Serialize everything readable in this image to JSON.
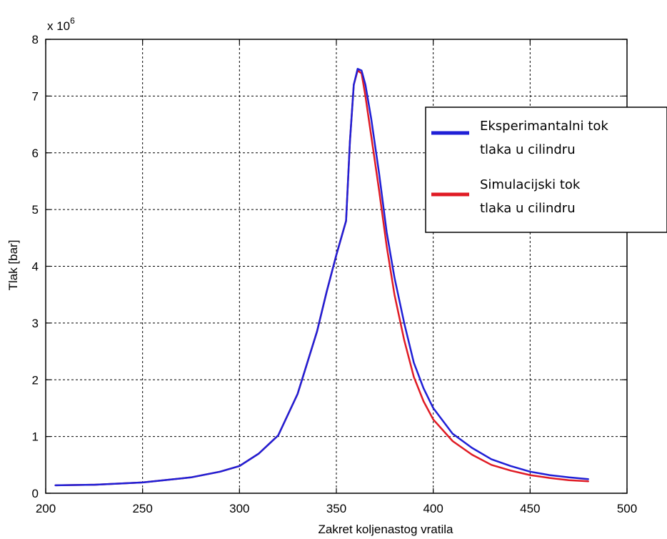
{
  "chart_data": {
    "type": "line",
    "title": "",
    "xlabel": "Zakret koljenastog vratila",
    "ylabel": "Tlak [bar]",
    "y_multiplier": "x 10",
    "y_multiplier_exponent": "6",
    "xlim": [
      200,
      500
    ],
    "ylim": [
      0,
      8
    ],
    "x_ticks": [
      200,
      250,
      300,
      350,
      400,
      450,
      500
    ],
    "y_ticks": [
      0,
      1,
      2,
      3,
      4,
      5,
      6,
      7,
      8
    ],
    "grid": true,
    "legend_position": "top-right",
    "series": [
      {
        "name": "Eksperimantalni tok tlaka u cilindru",
        "color": "#1f1fd6",
        "x": [
          205,
          225,
          250,
          275,
          290,
          300,
          310,
          320,
          330,
          340,
          345,
          350,
          355,
          357,
          359,
          361,
          363,
          365,
          368,
          372,
          376,
          380,
          385,
          390,
          395,
          400,
          410,
          420,
          430,
          440,
          450,
          460,
          470,
          480
        ],
        "y": [
          0.14,
          0.15,
          0.19,
          0.28,
          0.38,
          0.48,
          0.7,
          1.02,
          1.75,
          2.85,
          3.55,
          4.2,
          4.8,
          6.2,
          7.2,
          7.48,
          7.45,
          7.2,
          6.6,
          5.65,
          4.6,
          3.8,
          3.0,
          2.3,
          1.85,
          1.5,
          1.05,
          0.8,
          0.6,
          0.48,
          0.38,
          0.32,
          0.28,
          0.25
        ]
      },
      {
        "name": "Simulacijski tok tlaka u cilindru",
        "color": "#e01b24",
        "x": [
          205,
          225,
          250,
          275,
          290,
          300,
          310,
          320,
          330,
          340,
          345,
          350,
          355,
          357,
          359,
          361,
          363,
          365,
          368,
          372,
          376,
          380,
          385,
          390,
          395,
          400,
          410,
          420,
          430,
          440,
          450,
          460,
          470,
          480
        ],
        "y": [
          0.14,
          0.15,
          0.19,
          0.28,
          0.38,
          0.48,
          0.7,
          1.02,
          1.75,
          2.85,
          3.55,
          4.2,
          4.8,
          6.2,
          7.2,
          7.45,
          7.4,
          7.0,
          6.3,
          5.35,
          4.35,
          3.5,
          2.7,
          2.05,
          1.62,
          1.3,
          0.92,
          0.68,
          0.5,
          0.4,
          0.32,
          0.27,
          0.23,
          0.21
        ]
      }
    ],
    "legend": {
      "entries": [
        {
          "line1": "Eksperimantalni tok",
          "line2": "tlaka u cilindru"
        },
        {
          "line1": "Simulacijski tok",
          "line2": "tlaka u cilindru"
        }
      ]
    }
  }
}
